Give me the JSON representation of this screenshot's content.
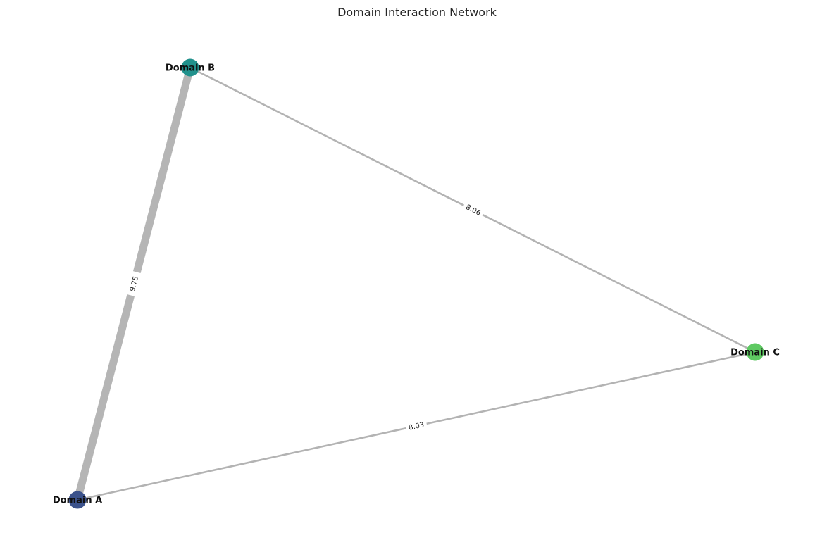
{
  "title": "Domain Interaction Network",
  "nodes": [
    {
      "id": "A",
      "label": "Domain A",
      "color": "#3b528b"
    },
    {
      "id": "B",
      "label": "Domain B",
      "color": "#21918c"
    },
    {
      "id": "C",
      "label": "Domain C",
      "color": "#5ec962"
    }
  ],
  "edges": [
    {
      "id": "A-B",
      "source": "A",
      "target": "B",
      "weight": 9.75,
      "label": "9.75"
    },
    {
      "id": "B-C",
      "source": "B",
      "target": "C",
      "weight": 8.06,
      "label": "8.06"
    },
    {
      "id": "A-C",
      "source": "A",
      "target": "C",
      "weight": 8.03,
      "label": "8.03"
    }
  ],
  "edge_color": "#b3b3b3"
}
